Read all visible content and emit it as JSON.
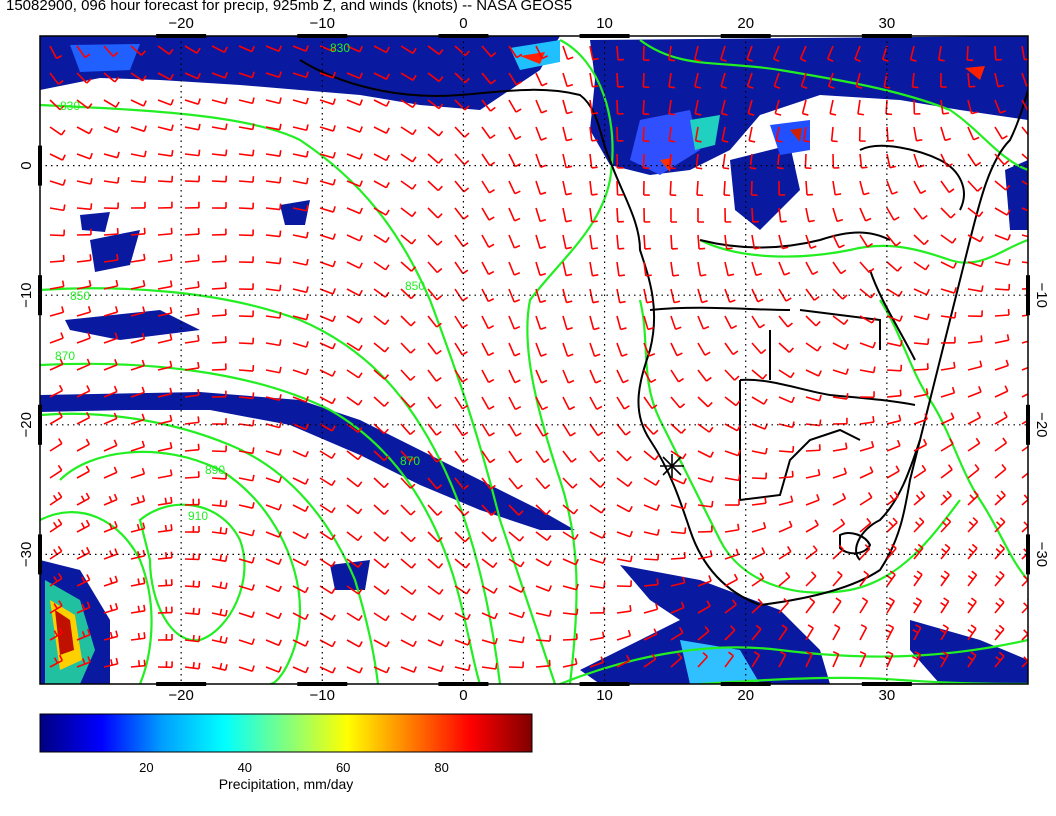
{
  "title": "15082900, 096 hour forecast for precip, 925mb Z, and winds (knots) -- NASA GEOS5",
  "map": {
    "lon_range": [
      -30,
      40
    ],
    "lat_range": [
      -40,
      10
    ],
    "lon_ticks": [
      {
        "value": -20,
        "label": "−20"
      },
      {
        "value": -10,
        "label": "−10"
      },
      {
        "value": 0,
        "label": "0"
      },
      {
        "value": 10,
        "label": "10"
      },
      {
        "value": 20,
        "label": "20"
      },
      {
        "value": 30,
        "label": "30"
      }
    ],
    "lat_ticks_left": [
      {
        "value": 0,
        "label": "0"
      },
      {
        "value": -10,
        "label": "−10"
      },
      {
        "value": -20,
        "label": "−20"
      },
      {
        "value": -30,
        "label": "−30"
      }
    ],
    "lat_ticks_right": [
      {
        "value": -10,
        "label": "−10"
      },
      {
        "value": -20,
        "label": "−20"
      },
      {
        "value": -30,
        "label": "−30"
      }
    ],
    "contour_labels": [
      "830",
      "850",
      "870",
      "890",
      "910",
      "830",
      "850",
      "870"
    ],
    "colors": {
      "wind_barb": "#ff0000",
      "contour": "#22ee22",
      "coast": "#000000",
      "grid": "#000000"
    }
  },
  "colorbar": {
    "ticks": [
      {
        "value": 20,
        "label": "20"
      },
      {
        "value": 40,
        "label": "40"
      },
      {
        "value": 60,
        "label": "60"
      },
      {
        "value": 80,
        "label": "80"
      }
    ],
    "range": [
      0,
      100
    ],
    "label": "Precipitation, mm/day",
    "colors": [
      "#000080",
      "#0000ff",
      "#00a0ff",
      "#00ffff",
      "#80ff80",
      "#ffff00",
      "#ff8000",
      "#ff0000",
      "#800000"
    ]
  }
}
